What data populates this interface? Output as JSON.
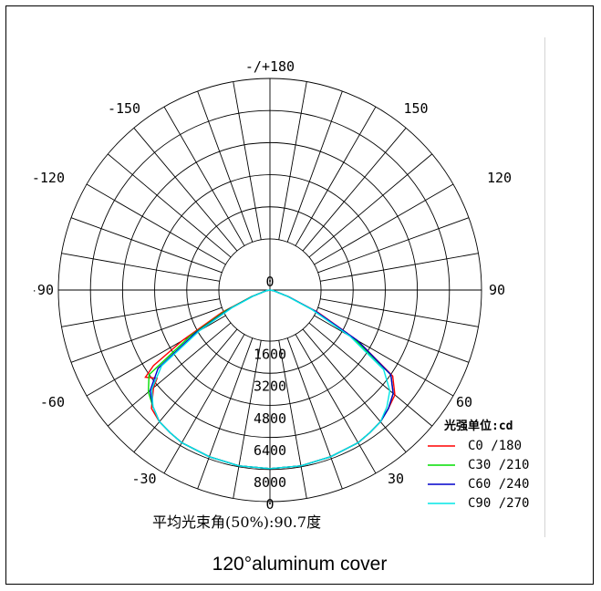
{
  "chart_data": {
    "type": "polar",
    "angular_labels": [
      {
        "text": "-/+180",
        "angle": 180
      },
      {
        "text": "150",
        "angle": 150
      },
      {
        "text": "-150",
        "angle": -150
      },
      {
        "text": "120",
        "angle": 120
      },
      {
        "text": "-120",
        "angle": -120
      },
      {
        "text": "90",
        "angle": 90
      },
      {
        "text": "-90",
        "angle": -90
      },
      {
        "text": "60",
        "angle": 60
      },
      {
        "text": "-60",
        "angle": -60
      },
      {
        "text": "30",
        "angle": 30
      },
      {
        "text": "-30",
        "angle": -30
      },
      {
        "text": "0",
        "angle": 0
      }
    ],
    "radial_ticks": [
      "0",
      "1600",
      "3200",
      "4800",
      "6400",
      "8000"
    ],
    "radial_max": 9600,
    "legend_title": "光强单位:cd",
    "series": [
      {
        "name": "C0  /180",
        "color": "#ff0000",
        "points": [
          [
            -90,
            0
          ],
          [
            -80,
            180
          ],
          [
            -70,
            900
          ],
          [
            -65,
            2400
          ],
          [
            -60,
            4600
          ],
          [
            -57,
            6300
          ],
          [
            -55,
            6900
          ],
          [
            -52,
            6500
          ],
          [
            -50,
            6900
          ],
          [
            -45,
            7600
          ],
          [
            -40,
            7800
          ],
          [
            -35,
            7900
          ],
          [
            -30,
            8000
          ],
          [
            -20,
            8050
          ],
          [
            -10,
            8100
          ],
          [
            0,
            8100
          ],
          [
            10,
            8100
          ],
          [
            20,
            8050
          ],
          [
            30,
            8000
          ],
          [
            35,
            7900
          ],
          [
            40,
            7800
          ],
          [
            45,
            7600
          ],
          [
            50,
            7400
          ],
          [
            55,
            6800
          ],
          [
            60,
            4600
          ],
          [
            65,
            2400
          ],
          [
            70,
            900
          ],
          [
            80,
            180
          ],
          [
            90,
            0
          ]
        ]
      },
      {
        "name": "C30 /210",
        "color": "#00dd00",
        "points": [
          [
            -90,
            0
          ],
          [
            -80,
            180
          ],
          [
            -70,
            900
          ],
          [
            -65,
            2200
          ],
          [
            -60,
            4200
          ],
          [
            -55,
            6700
          ],
          [
            -50,
            7200
          ],
          [
            -45,
            7500
          ],
          [
            -40,
            7800
          ],
          [
            -35,
            7900
          ],
          [
            -30,
            8000
          ],
          [
            -20,
            8050
          ],
          [
            -10,
            8100
          ],
          [
            0,
            8100
          ],
          [
            10,
            8100
          ],
          [
            20,
            8050
          ],
          [
            30,
            8000
          ],
          [
            35,
            7900
          ],
          [
            40,
            7800
          ],
          [
            45,
            7600
          ],
          [
            50,
            7300
          ],
          [
            55,
            6700
          ],
          [
            60,
            4400
          ],
          [
            65,
            2200
          ],
          [
            70,
            900
          ],
          [
            80,
            180
          ],
          [
            90,
            0
          ]
        ]
      },
      {
        "name": "C60 /240",
        "color": "#0000cc",
        "points": [
          [
            -90,
            0
          ],
          [
            -80,
            180
          ],
          [
            -70,
            850
          ],
          [
            -65,
            2000
          ],
          [
            -60,
            3900
          ],
          [
            -55,
            6200
          ],
          [
            -50,
            7100
          ],
          [
            -45,
            7500
          ],
          [
            -40,
            7800
          ],
          [
            -35,
            7900
          ],
          [
            -30,
            8000
          ],
          [
            -20,
            8050
          ],
          [
            -10,
            8100
          ],
          [
            0,
            8100
          ],
          [
            10,
            8100
          ],
          [
            20,
            8050
          ],
          [
            30,
            8000
          ],
          [
            35,
            7900
          ],
          [
            40,
            7800
          ],
          [
            45,
            7600
          ],
          [
            50,
            7300
          ],
          [
            55,
            6700
          ],
          [
            60,
            4600
          ],
          [
            65,
            2300
          ],
          [
            70,
            900
          ],
          [
            80,
            180
          ],
          [
            90,
            0
          ]
        ]
      },
      {
        "name": "C90 /270",
        "color": "#00e5e5",
        "points": [
          [
            -90,
            0
          ],
          [
            -80,
            170
          ],
          [
            -70,
            800
          ],
          [
            -65,
            1900
          ],
          [
            -60,
            3700
          ],
          [
            -55,
            6000
          ],
          [
            -50,
            7000
          ],
          [
            -45,
            7500
          ],
          [
            -40,
            7800
          ],
          [
            -35,
            7900
          ],
          [
            -30,
            8000
          ],
          [
            -20,
            8050
          ],
          [
            -10,
            8100
          ],
          [
            0,
            8100
          ],
          [
            10,
            8100
          ],
          [
            20,
            8050
          ],
          [
            30,
            8000
          ],
          [
            35,
            7900
          ],
          [
            40,
            7800
          ],
          [
            45,
            7500
          ],
          [
            50,
            7100
          ],
          [
            55,
            6300
          ],
          [
            60,
            4200
          ],
          [
            65,
            2100
          ],
          [
            70,
            850
          ],
          [
            80,
            170
          ],
          [
            90,
            0
          ]
        ]
      }
    ],
    "footnote": "平均光束角(50%):90.7度"
  },
  "caption": "120°aluminum cover"
}
